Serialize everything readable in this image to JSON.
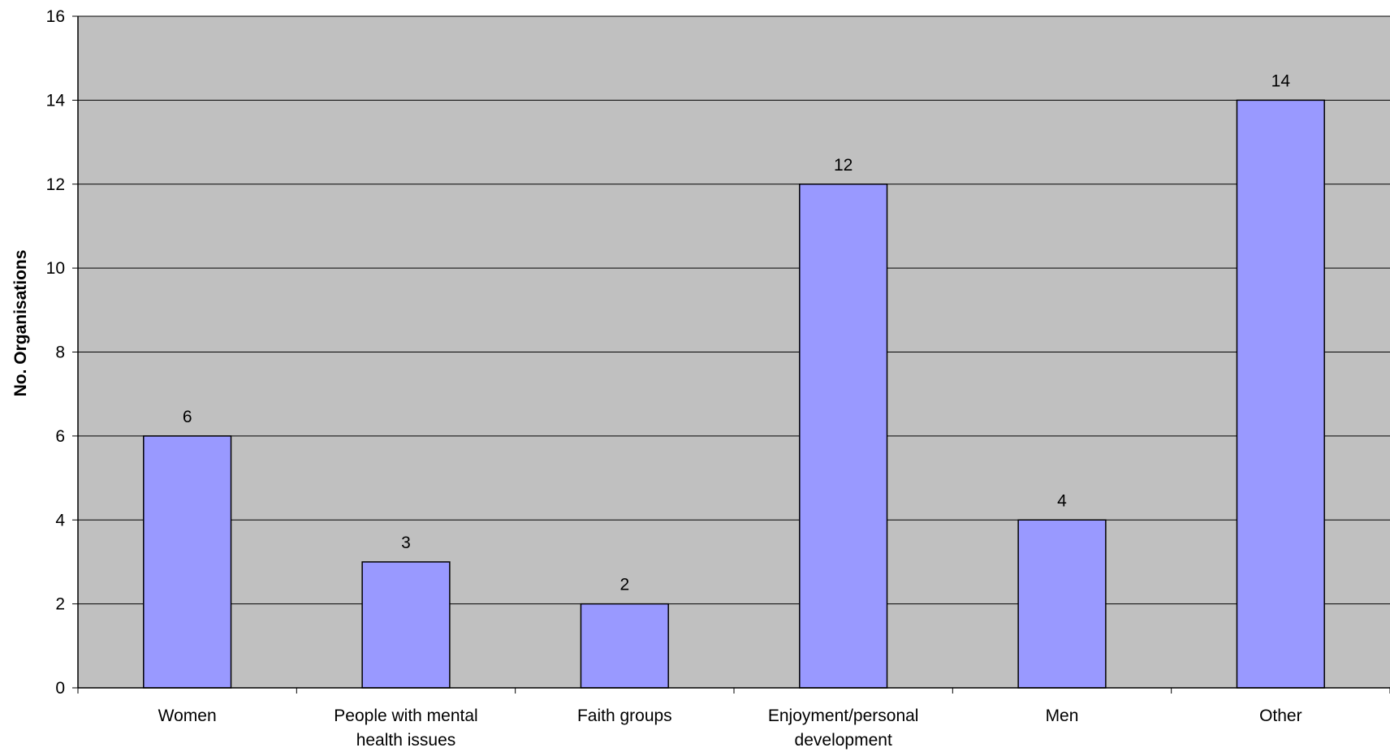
{
  "chart_data": {
    "type": "bar",
    "categories": [
      [
        "Women"
      ],
      [
        "People with mental",
        "health issues"
      ],
      [
        "Faith groups"
      ],
      [
        "Enjoyment/personal",
        "development"
      ],
      [
        "Men"
      ],
      [
        "Other"
      ]
    ],
    "values": [
      6,
      3,
      2,
      12,
      4,
      14
    ],
    "ylabel": "No. Organisations",
    "ylim": [
      0,
      16
    ],
    "yticks": [
      0,
      2,
      4,
      6,
      8,
      10,
      12,
      14,
      16
    ],
    "grid": true,
    "data_labels": true,
    "colors": {
      "plot_background": "#c0c0c0",
      "bar_fill": "#9999ff",
      "bar_stroke": "#000000",
      "grid": "#000000"
    }
  }
}
